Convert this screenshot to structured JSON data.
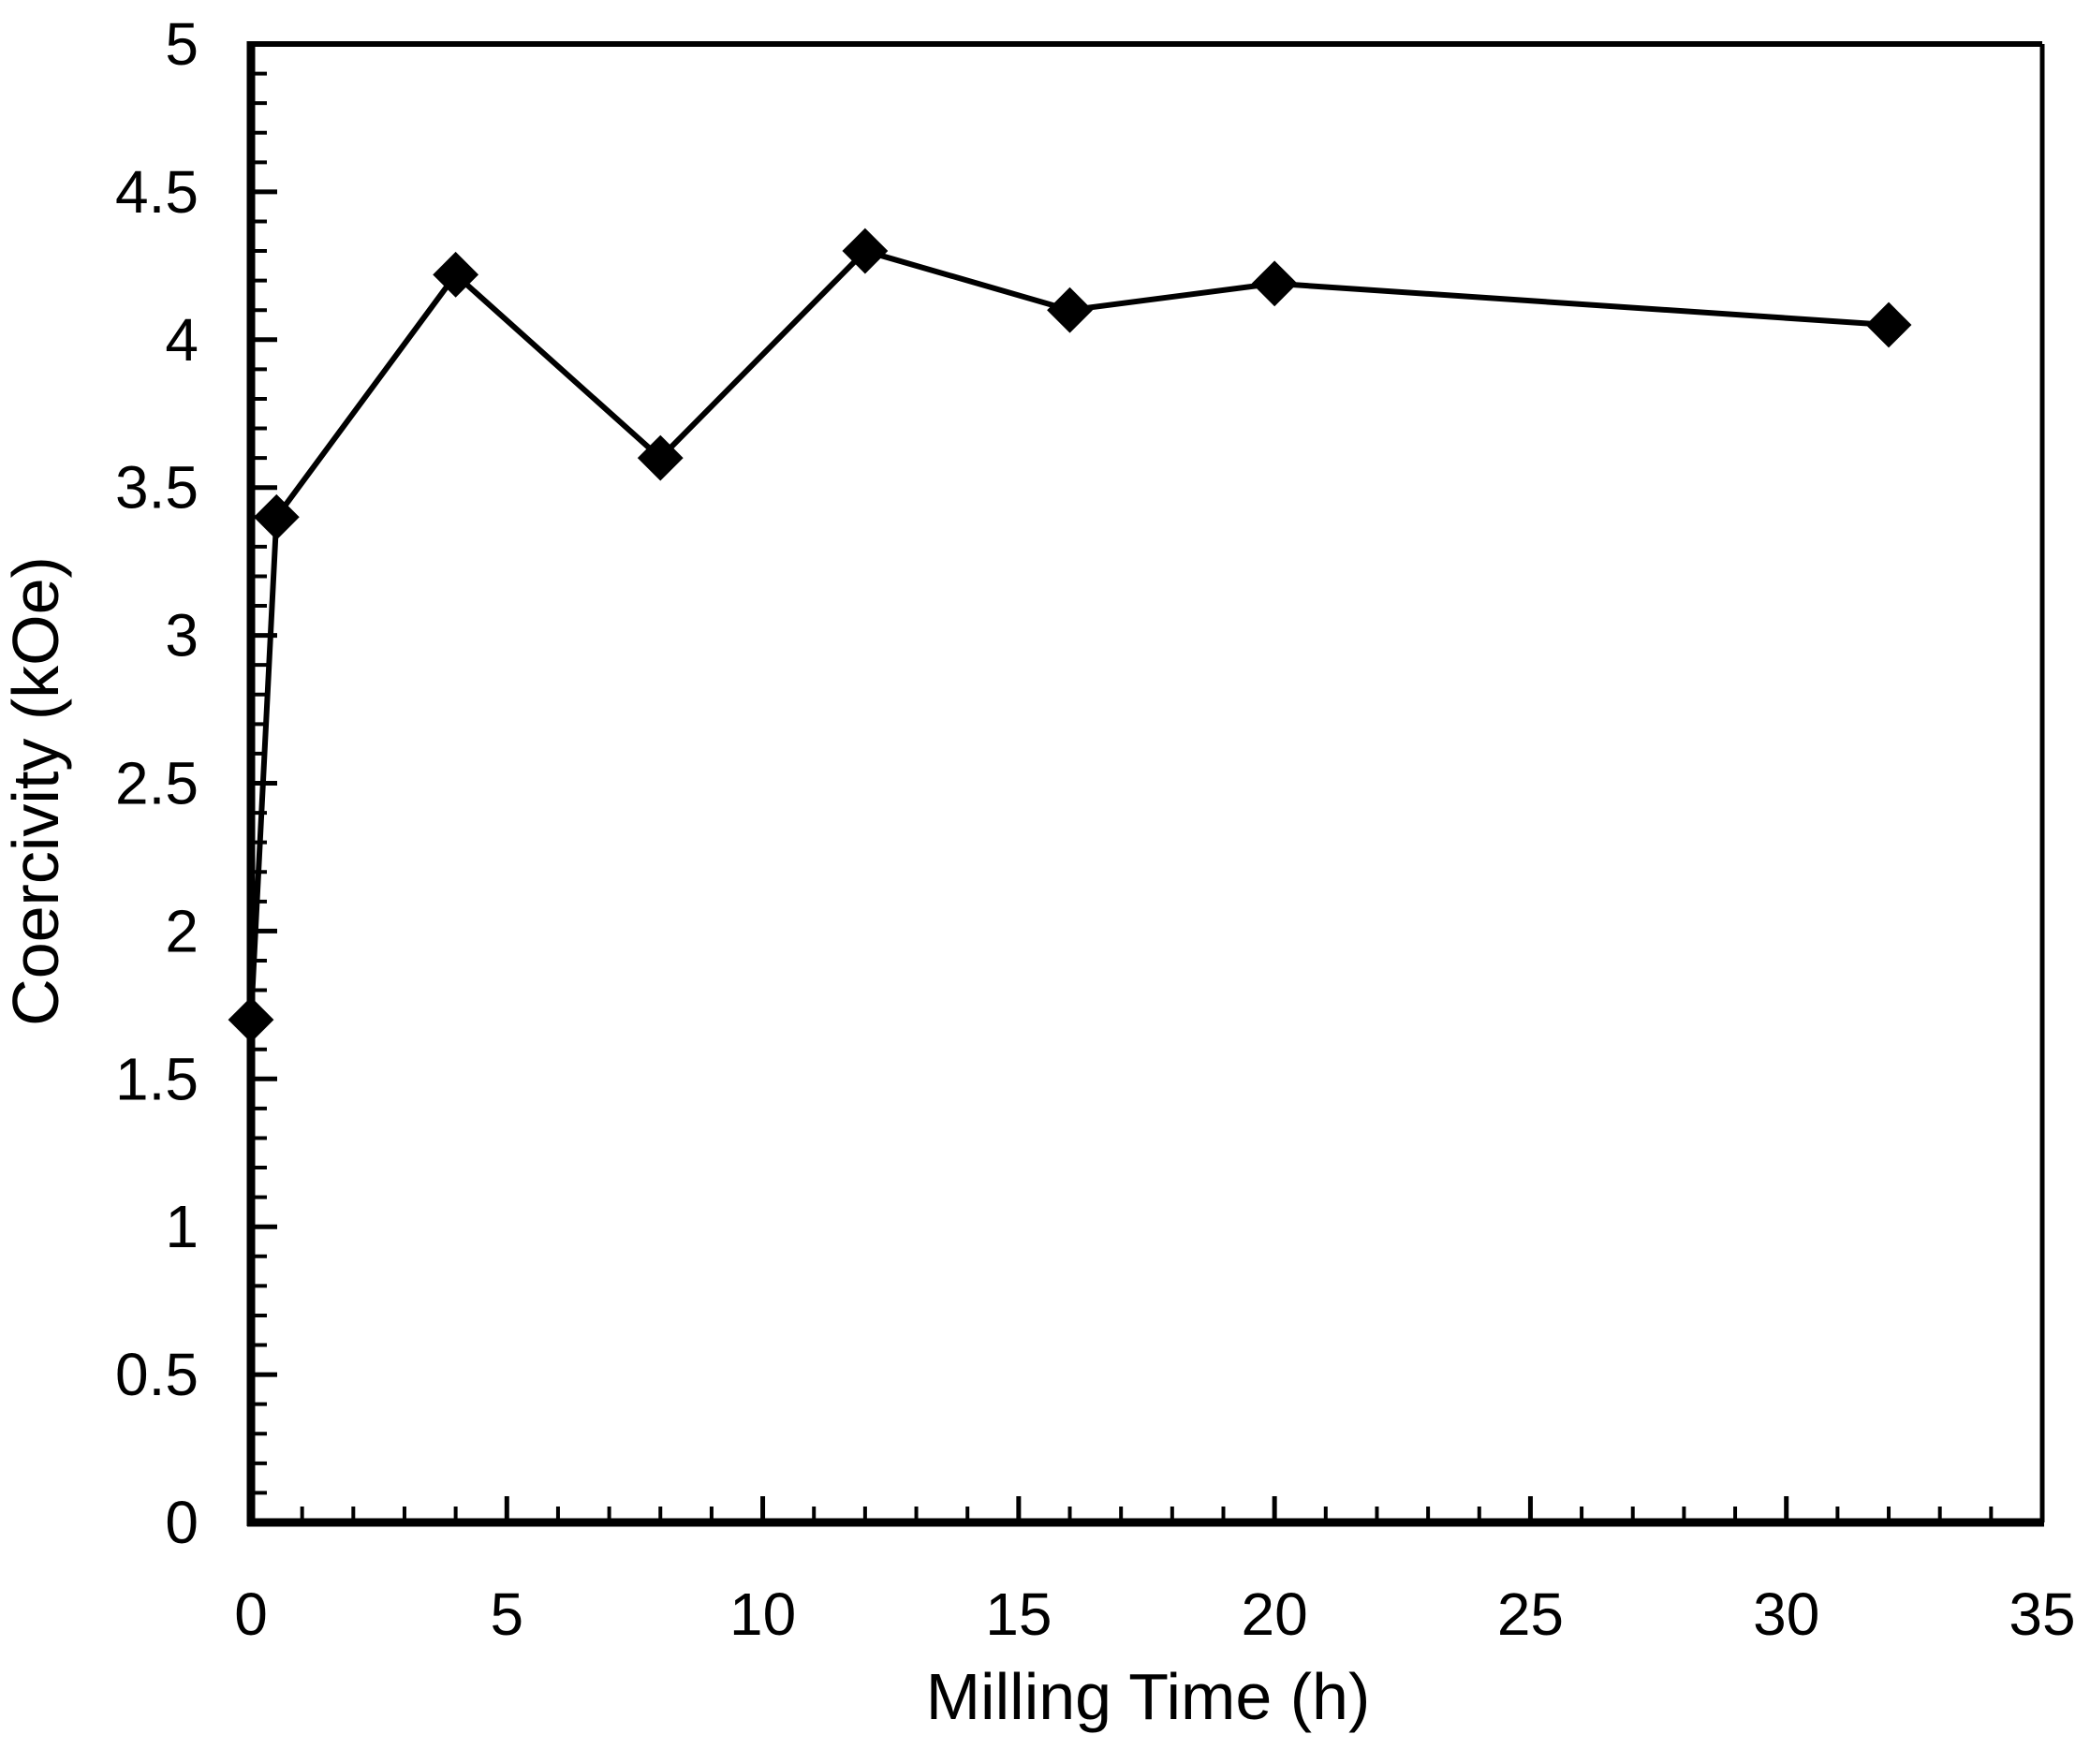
{
  "chart_data": {
    "type": "line",
    "title": "",
    "xlabel": "Milling Time (h)",
    "ylabel": "Coercivity (kOe)",
    "series": [
      {
        "name": "Coercivity",
        "x": [
          0,
          0.5,
          4,
          8,
          12,
          16,
          20,
          32
        ],
        "y": [
          1.7,
          3.4,
          4.22,
          3.6,
          4.3,
          4.1,
          4.19,
          4.05
        ],
        "line_color": "#000000",
        "marker": "diamond",
        "marker_color": "#000000"
      }
    ],
    "xlim": [
      0,
      35
    ],
    "ylim": [
      0,
      5
    ],
    "x_major_ticks": [
      0,
      5,
      10,
      15,
      20,
      25,
      30,
      35
    ],
    "x_tick_labels": [
      "0",
      "5",
      "10",
      "15",
      "20",
      "25",
      "30",
      "35"
    ],
    "x_minor_step": 1,
    "y_major_ticks": [
      0,
      0.5,
      1,
      1.5,
      2,
      2.5,
      3,
      3.5,
      4,
      4.5,
      5
    ],
    "y_tick_labels": [
      "0",
      "0.5",
      "1",
      "1.5",
      "2",
      "2.5",
      "3",
      "3.5",
      "4",
      "4.5",
      "5"
    ],
    "y_minor_step": 0.1,
    "grid": false,
    "legend": false,
    "tick_direction": "in",
    "frame": true,
    "axis_color": "#000000",
    "text_color": "#000000",
    "background": "#ffffff"
  }
}
